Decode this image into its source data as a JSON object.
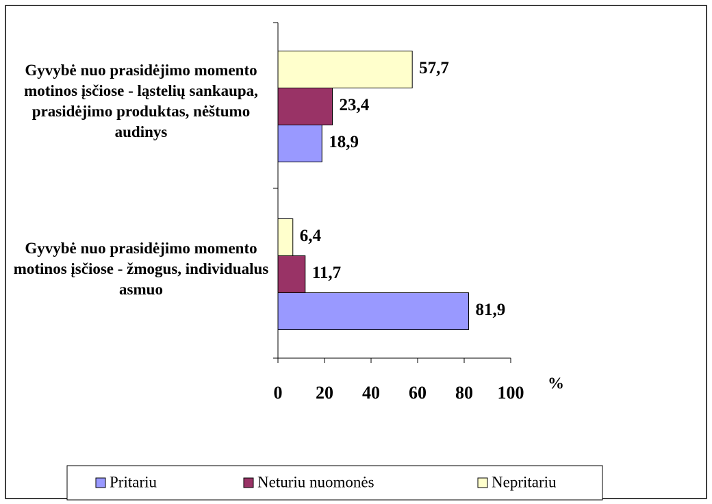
{
  "chart_data": {
    "type": "bar",
    "orientation": "horizontal",
    "categories": [
      "Gyvybė nuo prasidėjimo momento motinos įsčiose - ląstelių sankaupa, prasidėjimo produktas, nėštumo audinys",
      "Gyvybė nuo prasidėjimo momento motinos įsčiose - žmogus, individualus asmuo"
    ],
    "series": [
      {
        "name": "Pritariu",
        "color": "#9999ff",
        "values": [
          18.9,
          81.9
        ],
        "value_labels": [
          "18,9",
          "81,9"
        ]
      },
      {
        "name": "Neturiu nuomonės",
        "color": "#993366",
        "values": [
          23.4,
          11.7
        ],
        "value_labels": [
          "23,4",
          "11,7"
        ]
      },
      {
        "name": "Nepritariu",
        "color": "#ffffcc",
        "values": [
          57.7,
          6.4
        ],
        "value_labels": [
          "57,7",
          "6,4"
        ]
      }
    ],
    "xlabel": "%",
    "xlim": [
      0,
      100
    ],
    "xticks": [
      0,
      20,
      40,
      60,
      80,
      100
    ],
    "legend": "bottom"
  }
}
